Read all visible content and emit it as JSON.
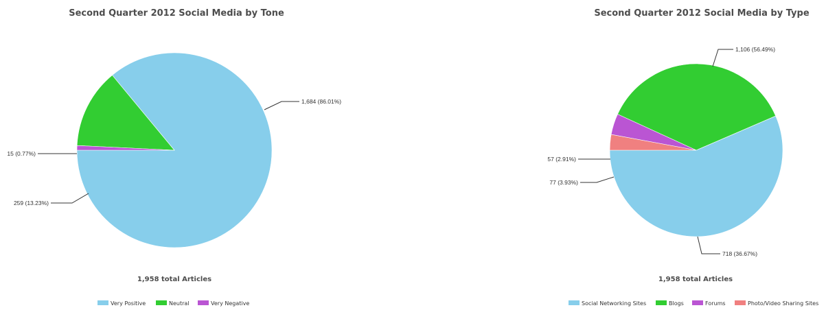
{
  "chart_data": [
    {
      "type": "pie",
      "title": "Second Quarter 2012 Social Media by Tone",
      "total_label": "1,958 total Articles",
      "legend_placement": "bottom",
      "slices": [
        {
          "name": "Very Positive",
          "value": 1684,
          "label": "1,684 (86.01%)",
          "color": "#87ceeb"
        },
        {
          "name": "Neutral",
          "value": 259,
          "label": "259 (13.23%)",
          "color": "#32cd32"
        },
        {
          "name": "Very Negative",
          "value": 15,
          "label": "15 (0.77%)",
          "color": "#ba55d3"
        }
      ]
    },
    {
      "type": "pie",
      "title": "Second Quarter 2012 Social Media by Type",
      "total_label": "1,958 total Articles",
      "legend_placement": "bottom",
      "slices": [
        {
          "name": "Social Networking Sites",
          "value": 1106,
          "label": "1,106 (56.49%)",
          "color": "#87ceeb"
        },
        {
          "name": "Blogs",
          "value": 718,
          "label": "718 (36.67%)",
          "color": "#32cd32"
        },
        {
          "name": "Forums",
          "value": 77,
          "label": "77 (3.93%)",
          "color": "#ba55d3"
        },
        {
          "name": "Photo/Video Sharing Sites",
          "value": 57,
          "label": "57 (2.91%)",
          "color": "#f08080"
        }
      ]
    }
  ]
}
